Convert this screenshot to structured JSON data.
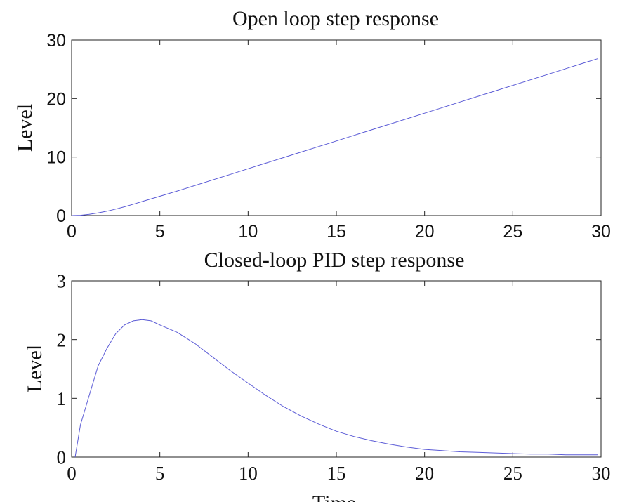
{
  "chart_data": [
    {
      "type": "line",
      "title": "Open loop step response",
      "xlabel": "",
      "ylabel": "Level",
      "xlim": [
        0,
        30
      ],
      "ylim": [
        0,
        30
      ],
      "xticks": [
        "0",
        "5",
        "10",
        "15",
        "20",
        "25",
        "30"
      ],
      "yticks": [
        "0",
        "10",
        "20",
        "30"
      ],
      "grid": false,
      "color": "#5b5bd6",
      "x": [
        0,
        0.5,
        1,
        1.5,
        2,
        2.5,
        3,
        3.5,
        4,
        5,
        6,
        7,
        8,
        9,
        10,
        11,
        12,
        13,
        14,
        15,
        16,
        17,
        18,
        19,
        20,
        21,
        22,
        23,
        24,
        25,
        26,
        27,
        28,
        29,
        29.8
      ],
      "y": [
        0,
        0.05,
        0.2,
        0.45,
        0.75,
        1.1,
        1.5,
        1.95,
        2.4,
        3.3,
        4.2,
        5.15,
        6.1,
        7.05,
        8.0,
        8.95,
        9.9,
        10.85,
        11.8,
        12.75,
        13.7,
        14.65,
        15.6,
        16.55,
        17.5,
        18.45,
        19.4,
        20.35,
        21.3,
        22.25,
        23.2,
        24.15,
        25.1,
        26.05,
        26.8
      ]
    },
    {
      "type": "line",
      "title": "Closed-loop PID step response",
      "xlabel": "Time",
      "ylabel": "Level",
      "xlim": [
        0,
        30
      ],
      "ylim": [
        0,
        3
      ],
      "xticks": [
        "0",
        "5",
        "10",
        "15",
        "20",
        "25",
        "30"
      ],
      "yticks": [
        "0",
        "1",
        "2",
        "3"
      ],
      "grid": false,
      "color": "#5b5bd6",
      "x": [
        0.2,
        0.5,
        1,
        1.5,
        2,
        2.5,
        3,
        3.5,
        4,
        4.5,
        5,
        6,
        7,
        8,
        9,
        10,
        11,
        12,
        13,
        14,
        15,
        16,
        17,
        18,
        19,
        20,
        21,
        22,
        23,
        24,
        25,
        26,
        27,
        28,
        29,
        29.8
      ],
      "y": [
        0,
        0.55,
        1.05,
        1.55,
        1.85,
        2.1,
        2.25,
        2.32,
        2.34,
        2.32,
        2.25,
        2.12,
        1.93,
        1.7,
        1.47,
        1.26,
        1.05,
        0.86,
        0.7,
        0.56,
        0.44,
        0.35,
        0.28,
        0.22,
        0.17,
        0.13,
        0.11,
        0.09,
        0.08,
        0.07,
        0.06,
        0.05,
        0.05,
        0.04,
        0.04,
        0.04
      ]
    }
  ]
}
